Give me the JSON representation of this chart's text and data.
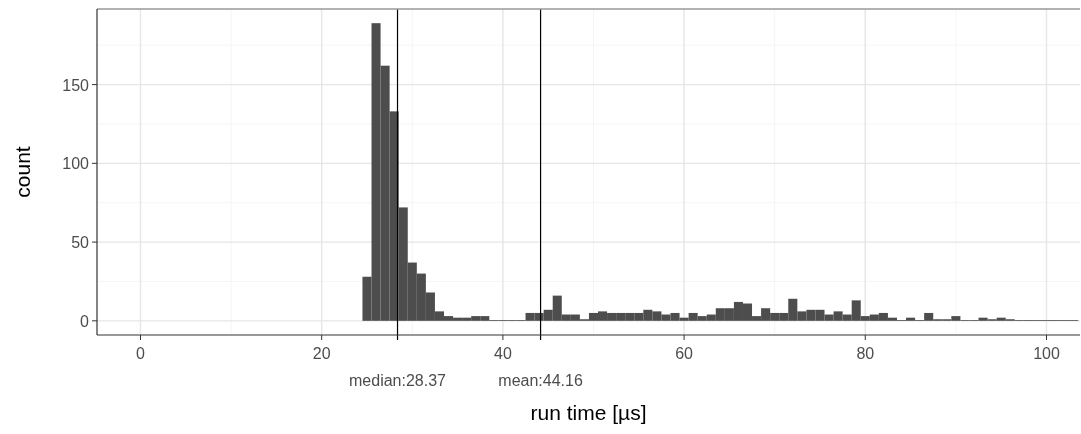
{
  "chart_data": {
    "type": "histogram",
    "xlabel": "run time [µs]",
    "ylabel": "count",
    "color": "#4d4d4d",
    "bins": [
      24.5,
      25.5,
      26.5,
      27.5,
      28.5,
      29.5,
      30.5,
      31.5,
      32.5,
      33.5,
      34.5,
      35.5,
      36.5,
      37.5,
      38.5,
      39.5,
      40.5,
      41.5,
      42.5,
      43.5,
      44.5,
      45.5,
      46.5,
      47.5,
      48.5,
      49.5,
      50.5,
      51.5,
      52.5,
      53.5,
      54.5,
      55.5,
      56.5,
      57.5,
      58.5,
      59.5,
      60.5,
      61.5,
      62.5,
      63.5,
      64.5,
      65.5,
      66.5,
      67.5,
      68.5,
      69.5,
      70.5,
      71.5,
      72.5,
      73.5,
      74.5,
      75.5,
      76.5,
      77.5,
      78.5,
      79.5,
      80.5,
      81.5,
      82.5,
      83.5,
      84.5,
      85.5,
      86.5,
      87.5,
      88.5,
      89.5,
      90.5,
      91.5,
      92.5,
      93.5,
      94.5,
      95.5,
      96.5,
      97.5,
      98.5,
      99.5,
      100.5,
      101.5,
      102.5,
      103.5
    ],
    "values": [
      28,
      189,
      162,
      133,
      72,
      37,
      30,
      18,
      6,
      3,
      2,
      2,
      3,
      3,
      0,
      0,
      0,
      0,
      5,
      5,
      7,
      16,
      4,
      4,
      1,
      5,
      6,
      5,
      5,
      5,
      5,
      7,
      6,
      4,
      5,
      2,
      5,
      3,
      4,
      8,
      8,
      12,
      11,
      3,
      8,
      5,
      5,
      14,
      6,
      7,
      7,
      4,
      6,
      4,
      13,
      3,
      4,
      5,
      2,
      0,
      2,
      0,
      5,
      1,
      1,
      3,
      0,
      0,
      2,
      1,
      2,
      1,
      0,
      0,
      0,
      0,
      0,
      0,
      0
    ],
    "xlim": [
      -4.8,
      103.7
    ],
    "ylim": [
      -9,
      198
    ],
    "xticks": [
      0,
      20,
      40,
      60,
      80,
      100
    ],
    "yticks": [
      0,
      50,
      100,
      150
    ],
    "grid": true,
    "ref_lines": [
      {
        "axis": "x",
        "value": 28.37,
        "label": "median:28.37",
        "color": "#000000"
      },
      {
        "axis": "x",
        "value": 44.16,
        "label": "mean:44.16",
        "color": "#000000"
      }
    ]
  }
}
